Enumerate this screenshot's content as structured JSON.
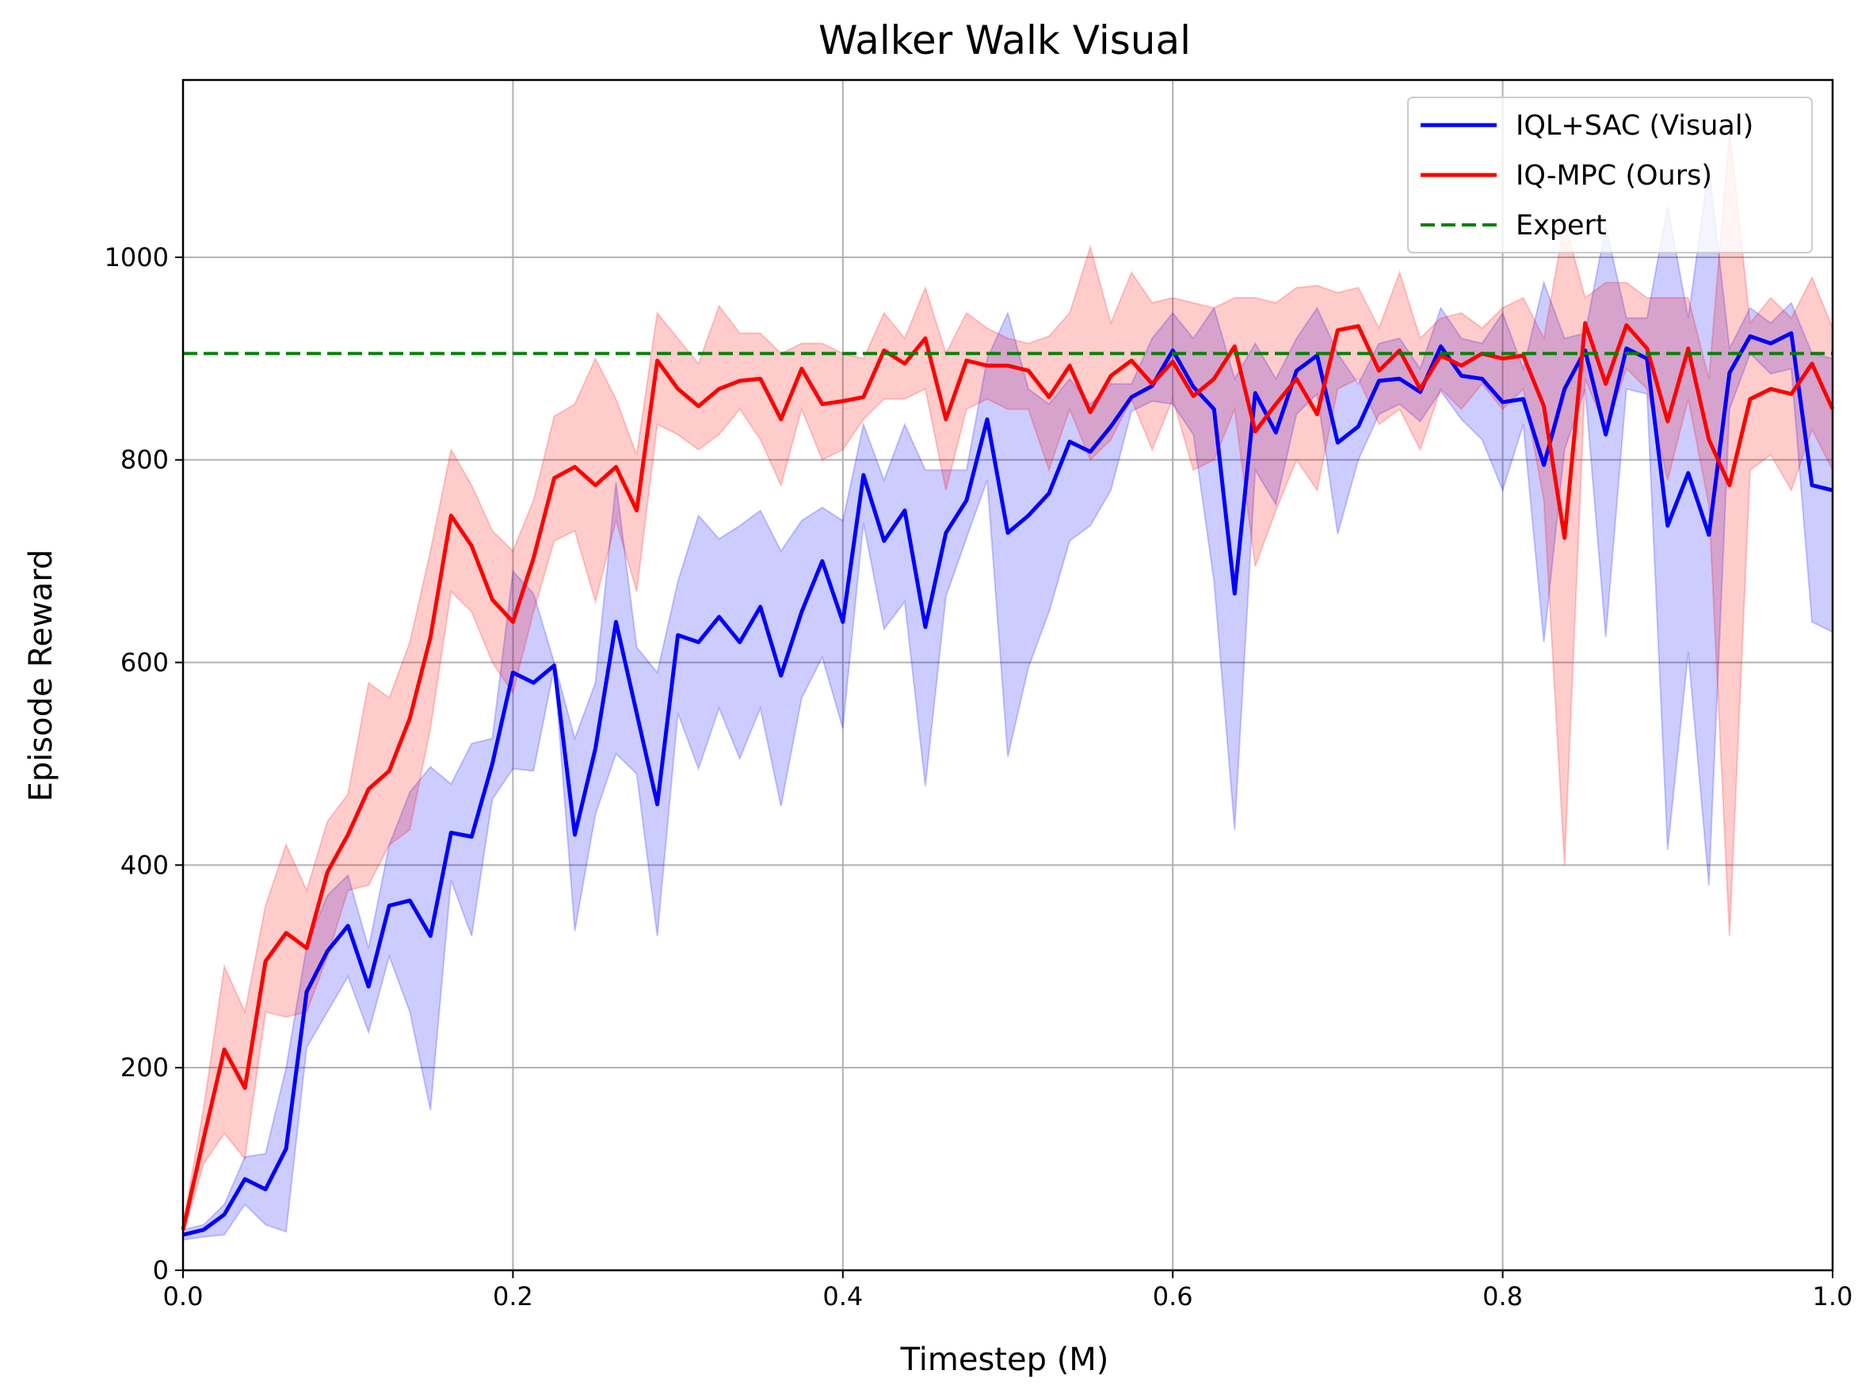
{
  "chart_data": {
    "type": "line",
    "title": "Walker Walk Visual",
    "xlabel": "Timestep (M)",
    "ylabel": "Episode Reward",
    "xlim": [
      0,
      1.0
    ],
    "ylim": [
      0,
      1175
    ],
    "xticks": [
      0.0,
      0.2,
      0.4,
      0.6,
      0.8,
      1.0
    ],
    "xtick_labels": [
      "0.0",
      "0.2",
      "0.4",
      "0.6",
      "0.8",
      "1.0"
    ],
    "yticks": [
      0,
      200,
      400,
      600,
      800,
      1000
    ],
    "ytick_labels": [
      "0",
      "200",
      "400",
      "600",
      "800",
      "1000"
    ],
    "grid": true,
    "legend_position": "top-right",
    "series": [
      {
        "name": "IQL+SAC (Visual)",
        "color": "#0000ff",
        "style": "solid",
        "x": [
          0.0,
          0.0125,
          0.025,
          0.0375,
          0.05,
          0.0625,
          0.075,
          0.0875,
          0.1,
          0.1125,
          0.125,
          0.1375,
          0.15,
          0.1625,
          0.175,
          0.1875,
          0.2,
          0.2125,
          0.225,
          0.2375,
          0.25,
          0.2625,
          0.275,
          0.2875,
          0.3,
          0.3125,
          0.325,
          0.3375,
          0.35,
          0.3625,
          0.375,
          0.3875,
          0.4,
          0.4125,
          0.425,
          0.4375,
          0.45,
          0.4625,
          0.475,
          0.4875,
          0.5,
          0.5125,
          0.525,
          0.5375,
          0.55,
          0.5625,
          0.575,
          0.5875,
          0.6,
          0.6125,
          0.625,
          0.6375,
          0.65,
          0.6625,
          0.675,
          0.6875,
          0.7,
          0.7125,
          0.725,
          0.7375,
          0.75,
          0.7625,
          0.775,
          0.7875,
          0.8,
          0.8125,
          0.825,
          0.8375,
          0.85,
          0.8625,
          0.875,
          0.8875,
          0.9,
          0.9125,
          0.925,
          0.9375,
          0.95,
          0.9625,
          0.975,
          0.9875,
          1.0
        ],
        "values": [
          35,
          40,
          55,
          90,
          80,
          120,
          275,
          315,
          340,
          280,
          360,
          365,
          330,
          432,
          428,
          500,
          590,
          580,
          597,
          430,
          515,
          640,
          550,
          460,
          627,
          620,
          645,
          620,
          655,
          587,
          650,
          700,
          640,
          785,
          720,
          750,
          635,
          728,
          760,
          840,
          728,
          745,
          767,
          818,
          808,
          833,
          862,
          873,
          908,
          872,
          850,
          668,
          866,
          827,
          888,
          903,
          817,
          833,
          878,
          880,
          867,
          912,
          883,
          880,
          857,
          860,
          795,
          870,
          908,
          825,
          910,
          900,
          735,
          787,
          726,
          886,
          922,
          915,
          925,
          775,
          770
        ],
        "lower": [
          30,
          33,
          35,
          65,
          45,
          38,
          220,
          255,
          290,
          235,
          310,
          255,
          158,
          385,
          330,
          465,
          495,
          493,
          595,
          335,
          450,
          510,
          490,
          330,
          550,
          495,
          555,
          505,
          555,
          458,
          565,
          605,
          535,
          738,
          633,
          660,
          478,
          665,
          723,
          780,
          507,
          595,
          650,
          720,
          735,
          770,
          848,
          858,
          855,
          825,
          680,
          435,
          790,
          756,
          845,
          865,
          727,
          800,
          845,
          855,
          838,
          868,
          840,
          820,
          770,
          835,
          620,
          810,
          870,
          625,
          870,
          865,
          415,
          610,
          380,
          850,
          905,
          885,
          890,
          640,
          630
        ],
        "upper": [
          40,
          45,
          65,
          112,
          115,
          200,
          320,
          370,
          390,
          318,
          420,
          472,
          497,
          480,
          520,
          525,
          690,
          668,
          600,
          525,
          580,
          778,
          615,
          590,
          680,
          745,
          722,
          735,
          750,
          710,
          740,
          753,
          740,
          835,
          780,
          835,
          790,
          790,
          790,
          900,
          945,
          870,
          855,
          880,
          855,
          875,
          875,
          920,
          945,
          920,
          950,
          880,
          915,
          880,
          920,
          950,
          905,
          875,
          915,
          920,
          890,
          950,
          920,
          915,
          945,
          890,
          975,
          920,
          925,
          1030,
          940,
          940,
          1050,
          940,
          1090,
          910,
          950,
          935,
          955,
          905,
          900
        ]
      },
      {
        "name": "IQ-MPC (Ours)",
        "color": "#ff0000",
        "style": "solid",
        "x": [
          0.0,
          0.0125,
          0.025,
          0.0375,
          0.05,
          0.0625,
          0.075,
          0.0875,
          0.1,
          0.1125,
          0.125,
          0.1375,
          0.15,
          0.1625,
          0.175,
          0.1875,
          0.2,
          0.2125,
          0.225,
          0.2375,
          0.25,
          0.2625,
          0.275,
          0.2875,
          0.3,
          0.3125,
          0.325,
          0.3375,
          0.35,
          0.3625,
          0.375,
          0.3875,
          0.4,
          0.4125,
          0.425,
          0.4375,
          0.45,
          0.4625,
          0.475,
          0.4875,
          0.5,
          0.5125,
          0.525,
          0.5375,
          0.55,
          0.5625,
          0.575,
          0.5875,
          0.6,
          0.6125,
          0.625,
          0.6375,
          0.65,
          0.6625,
          0.675,
          0.6875,
          0.7,
          0.7125,
          0.725,
          0.7375,
          0.75,
          0.7625,
          0.775,
          0.7875,
          0.8,
          0.8125,
          0.825,
          0.8375,
          0.85,
          0.8625,
          0.875,
          0.8875,
          0.9,
          0.9125,
          0.925,
          0.9375,
          0.95,
          0.9625,
          0.975,
          0.9875,
          1.0
        ],
        "values": [
          40,
          130,
          218,
          180,
          305,
          333,
          318,
          393,
          430,
          475,
          493,
          545,
          625,
          745,
          715,
          662,
          640,
          703,
          782,
          793,
          775,
          793,
          750,
          898,
          870,
          853,
          870,
          878,
          880,
          840,
          890,
          855,
          858,
          862,
          908,
          895,
          920,
          840,
          898,
          893,
          893,
          888,
          862,
          893,
          847,
          883,
          898,
          875,
          897,
          863,
          880,
          912,
          828,
          855,
          880,
          845,
          928,
          932,
          888,
          908,
          870,
          903,
          893,
          905,
          900,
          903,
          853,
          723,
          935,
          875,
          933,
          910,
          838,
          910,
          820,
          775,
          860,
          870,
          865,
          895,
          850
        ],
        "lower": [
          35,
          105,
          135,
          110,
          255,
          250,
          255,
          310,
          375,
          380,
          420,
          435,
          535,
          670,
          650,
          600,
          570,
          650,
          720,
          730,
          660,
          740,
          670,
          835,
          825,
          810,
          825,
          850,
          820,
          775,
          850,
          800,
          810,
          840,
          860,
          860,
          870,
          770,
          850,
          860,
          850,
          850,
          790,
          850,
          800,
          820,
          860,
          810,
          860,
          790,
          800,
          850,
          695,
          750,
          800,
          770,
          870,
          880,
          835,
          850,
          810,
          870,
          850,
          875,
          850,
          870,
          760,
          400,
          880,
          830,
          890,
          870,
          780,
          860,
          755,
          330,
          790,
          805,
          770,
          830,
          790
        ],
        "upper": [
          45,
          160,
          300,
          255,
          360,
          420,
          375,
          443,
          470,
          580,
          565,
          620,
          710,
          810,
          775,
          730,
          710,
          760,
          843,
          855,
          900,
          860,
          805,
          945,
          920,
          895,
          952,
          925,
          925,
          905,
          915,
          915,
          905,
          900,
          945,
          920,
          970,
          905,
          945,
          930,
          920,
          915,
          922,
          945,
          1010,
          935,
          985,
          955,
          960,
          955,
          950,
          960,
          960,
          955,
          970,
          972,
          965,
          970,
          930,
          985,
          920,
          940,
          945,
          930,
          950,
          960,
          920,
          1035,
          960,
          975,
          975,
          960,
          960,
          960,
          880,
          1125,
          935,
          960,
          940,
          980,
          930
        ]
      },
      {
        "name": "Expert",
        "color": "#008000",
        "style": "dashed",
        "constant": 905
      }
    ]
  }
}
